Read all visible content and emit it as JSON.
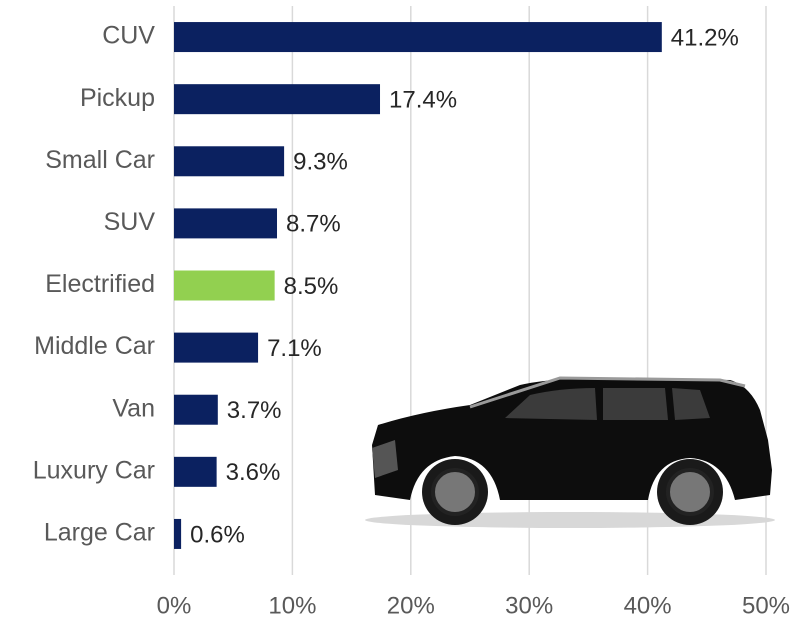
{
  "chart_data": {
    "type": "hbar",
    "categories": [
      "CUV",
      "Pickup",
      "Small Car",
      "SUV",
      "Electrified",
      "Middle Car",
      "Van",
      "Luxury Car",
      "Large Car"
    ],
    "values": [
      41.2,
      17.4,
      9.3,
      8.7,
      8.5,
      7.1,
      3.7,
      3.6,
      0.6
    ],
    "value_labels": [
      "41.2%",
      "17.4%",
      "9.3%",
      "8.7%",
      "8.5%",
      "7.1%",
      "3.7%",
      "3.6%",
      "0.6%"
    ],
    "colors": [
      "#0b2160",
      "#0b2160",
      "#0b2160",
      "#0b2160",
      "#92d050",
      "#0b2160",
      "#0b2160",
      "#0b2160",
      "#0b2160"
    ],
    "xlim": [
      0,
      50
    ],
    "xticks": [
      {
        "value": 0,
        "label": "0%"
      },
      {
        "value": 10,
        "label": "10%"
      },
      {
        "value": 20,
        "label": "20%"
      },
      {
        "value": 30,
        "label": "30%"
      },
      {
        "value": 40,
        "label": "40%"
      },
      {
        "value": 50,
        "label": "50%"
      }
    ],
    "grid": true
  }
}
